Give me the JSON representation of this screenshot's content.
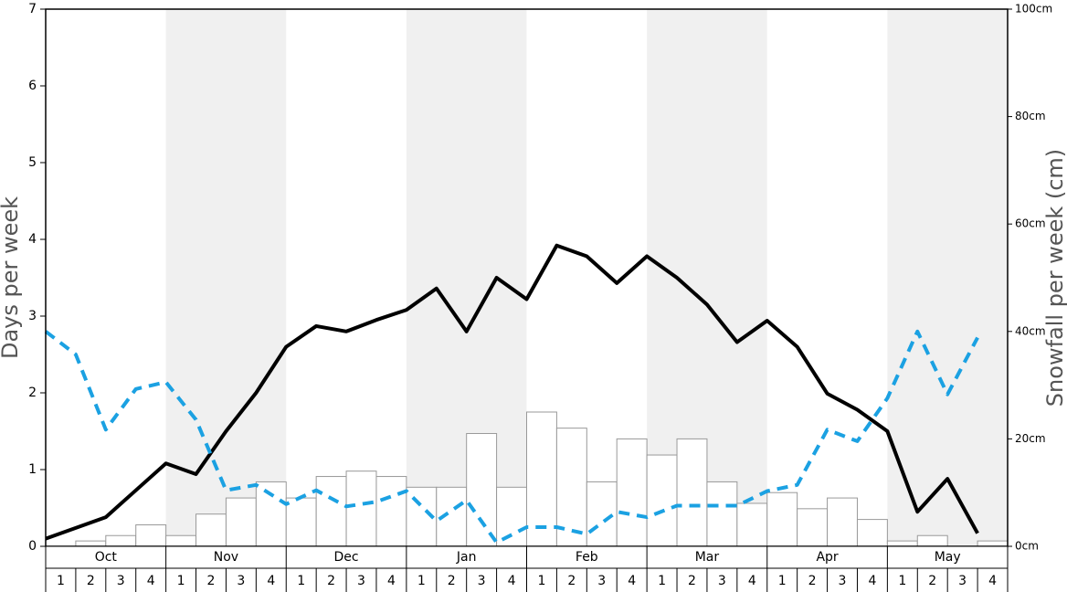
{
  "chart_data": {
    "type": "combo",
    "ylabel": "Days per week",
    "y2label": "Snowfall per week (cm)",
    "months": [
      "Oct",
      "Nov",
      "Dec",
      "Jan",
      "Feb",
      "Mar",
      "Apr",
      "May"
    ],
    "categories": [
      "1",
      "2",
      "3",
      "4",
      "1",
      "2",
      "3",
      "4",
      "1",
      "2",
      "3",
      "4",
      "1",
      "2",
      "3",
      "4",
      "1",
      "2",
      "3",
      "4",
      "1",
      "2",
      "3",
      "4",
      "1",
      "2",
      "3",
      "4",
      "1",
      "2",
      "3",
      "4"
    ],
    "ylim": [
      0,
      7
    ],
    "yticks": [
      0,
      1,
      2,
      3,
      4,
      5,
      6,
      7
    ],
    "y2lim": [
      0,
      100
    ],
    "y2ticks": [
      {
        "value": 0,
        "label": "0cm"
      },
      {
        "value": 20,
        "label": "20cm"
      },
      {
        "value": 40,
        "label": "40cm"
      },
      {
        "value": 60,
        "label": "60cm"
      },
      {
        "value": 80,
        "label": "80cm"
      },
      {
        "value": 100,
        "label": "100cm"
      }
    ],
    "series": [
      {
        "type": "bar",
        "axis": "y2",
        "color": "#999999",
        "values": [
          0,
          1,
          2,
          4,
          2,
          6,
          9,
          12,
          9,
          13,
          14,
          13,
          11,
          11,
          21,
          11,
          25,
          22,
          12,
          20,
          17,
          20,
          12,
          8,
          10,
          7,
          9,
          5,
          1,
          2,
          0,
          1
        ]
      },
      {
        "type": "line",
        "color": "#000000",
        "values": [
          0.1,
          0.24,
          0.38,
          0.73,
          1.08,
          0.94,
          1.5,
          2.0,
          2.6,
          2.87,
          2.8,
          2.95,
          3.08,
          3.36,
          2.8,
          3.5,
          3.22,
          3.92,
          3.78,
          3.43,
          3.78,
          3.5,
          3.15,
          2.66,
          2.94,
          2.6,
          1.99,
          1.78,
          1.5,
          0.45,
          0.88,
          0.17
        ]
      },
      {
        "type": "dashed",
        "color": "#1ba1e2",
        "values": [
          2.8,
          2.5,
          1.52,
          2.05,
          2.14,
          1.65,
          0.73,
          0.8,
          0.55,
          0.73,
          0.52,
          0.58,
          0.72,
          0.33,
          0.6,
          0.05,
          0.25,
          0.25,
          0.16,
          0.45,
          0.38,
          0.53,
          0.53,
          0.53,
          0.72,
          0.8,
          1.52,
          1.37,
          1.93,
          2.8,
          1.98,
          2.72
        ]
      }
    ]
  }
}
